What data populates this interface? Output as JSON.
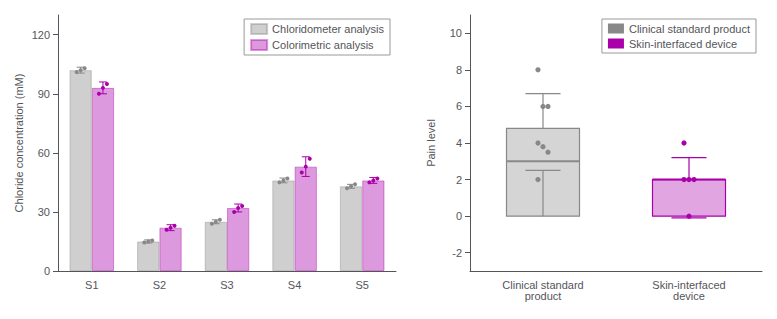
{
  "chart_data": [
    {
      "type": "bar",
      "categories": [
        "S1",
        "S2",
        "S3",
        "S4",
        "S5"
      ],
      "series": [
        {
          "name": "Chloridometer analysis",
          "color": "#888888",
          "values": [
            102,
            15,
            25,
            46,
            43
          ],
          "errors": [
            1.5,
            0.8,
            1.0,
            1.2,
            1.0
          ],
          "dots": [
            [
              101,
              102,
              103
            ],
            [
              14.5,
              15.0,
              15.5
            ],
            [
              24,
              25,
              26
            ],
            [
              45,
              46,
              47
            ],
            [
              42,
              43,
              44
            ]
          ]
        },
        {
          "name": "Colorimetric analysis",
          "color": "#aa00aa",
          "values": [
            93,
            22,
            32,
            53,
            46
          ],
          "errors": [
            3.0,
            1.5,
            2.0,
            5.0,
            1.5
          ],
          "dots": [
            [
              90,
              93,
              95
            ],
            [
              21,
              22,
              23
            ],
            [
              30,
              32,
              33
            ],
            [
              50,
              53,
              57
            ],
            [
              45,
              46,
              47
            ]
          ]
        }
      ],
      "ylabel": "Chloride concentration (mM)",
      "ylim": [
        0,
        130
      ],
      "yticks": [
        0,
        30,
        60,
        90,
        120
      ],
      "grid": false,
      "legend": "upper right"
    },
    {
      "type": "box",
      "categories": [
        "Clinical standard\nproduct",
        "Skin-interfaced\ndevice"
      ],
      "series": [
        {
          "name": "Clinical standard product",
          "color": "#888888",
          "q1": 0.0,
          "median": 3.0,
          "q3": 4.8,
          "whisker_low": 2.5,
          "whisker_high": 6.7,
          "dots": [
            8.0,
            6.0,
            6.0,
            4.0,
            3.8,
            3.5,
            2.0
          ]
        },
        {
          "name": "Skin-interfaced device",
          "color": "#aa00aa",
          "q1": 0.0,
          "median": 2.0,
          "q3": 2.0,
          "whisker_low": -0.1,
          "whisker_high": 3.2,
          "dots": [
            4.0,
            2.0,
            2.0,
            2.0,
            0.0
          ]
        }
      ],
      "ylabel": "Pain level",
      "ylim": [
        -3,
        11
      ],
      "yticks": [
        -2,
        0,
        2,
        4,
        6,
        8,
        10
      ],
      "grid": false,
      "legend": "upper right"
    }
  ]
}
